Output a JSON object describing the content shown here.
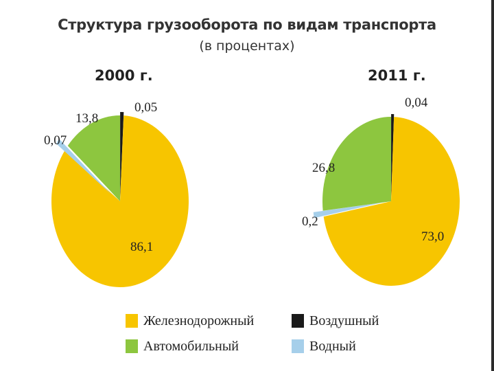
{
  "title": "Структура грузооборота по видам транспорта",
  "subtitle": "(в процентах)",
  "chart_data": [
    {
      "type": "pie",
      "title": "2000 г.",
      "categories": [
        "Железнодорожный",
        "Автомобильный",
        "Водный",
        "Воздушный"
      ],
      "values": [
        86.1,
        13.8,
        0.07,
        0.05
      ],
      "labels": [
        "86,1",
        "13,8",
        "0,07",
        "0,05"
      ],
      "colors": [
        "#F7C500",
        "#8DC63F",
        "#A6CFEA",
        "#1A1A1A"
      ]
    },
    {
      "type": "pie",
      "title": "2011 г.",
      "categories": [
        "Железнодорожный",
        "Автомобильный",
        "Водный",
        "Воздушный"
      ],
      "values": [
        73.0,
        26.8,
        0.2,
        0.04
      ],
      "labels": [
        "73,0",
        "26,8",
        "0,2",
        "0,04"
      ],
      "colors": [
        "#F7C500",
        "#8DC63F",
        "#A6CFEA",
        "#1A1A1A"
      ]
    }
  ],
  "legend": [
    {
      "label": "Железнодорожный",
      "color": "#F7C500"
    },
    {
      "label": "Автомобильный",
      "color": "#8DC63F"
    },
    {
      "label": "Воздушный",
      "color": "#1A1A1A"
    },
    {
      "label": "Водный",
      "color": "#A6CFEA"
    }
  ]
}
